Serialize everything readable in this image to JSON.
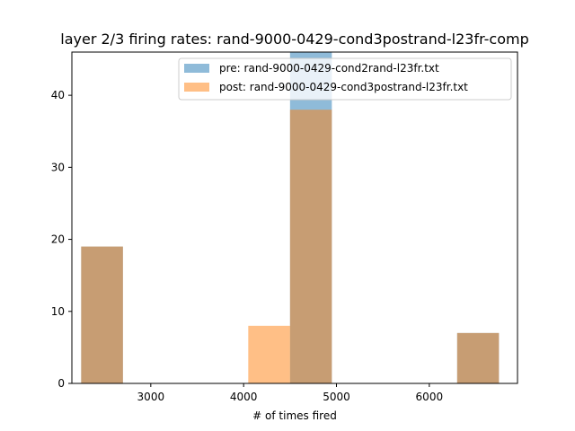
{
  "chart_data": {
    "type": "bar",
    "title": "layer 2/3 firing rates: rand-9000-0429-cond3postrand-l23fr-comp",
    "xlabel": "# of times fired",
    "ylabel": "",
    "xlim": [
      2150,
      6950
    ],
    "ylim": [
      0,
      46
    ],
    "x_ticks": [
      3000,
      4000,
      5000,
      6000
    ],
    "y_ticks": [
      0,
      10,
      20,
      30,
      40
    ],
    "grid": false,
    "legend_position": "top-right",
    "series": [
      {
        "name": "pre: rand-9000-0429-cond2rand-l23fr.txt",
        "color": "#1f77b4",
        "opacity": 0.5,
        "bars": [
          {
            "x0": 2250,
            "x1": 2700,
            "value": 19
          },
          {
            "x0": 4500,
            "x1": 4950,
            "value": 46
          },
          {
            "x0": 6300,
            "x1": 6750,
            "value": 7
          }
        ]
      },
      {
        "name": "post: rand-9000-0429-cond3postrand-l23fr.txt",
        "color": "#ff7f0e",
        "opacity": 0.5,
        "bars": [
          {
            "x0": 2250,
            "x1": 2700,
            "value": 19
          },
          {
            "x0": 4050,
            "x1": 4500,
            "value": 8
          },
          {
            "x0": 4500,
            "x1": 4950,
            "value": 38
          },
          {
            "x0": 6300,
            "x1": 6750,
            "value": 7
          }
        ]
      }
    ]
  }
}
